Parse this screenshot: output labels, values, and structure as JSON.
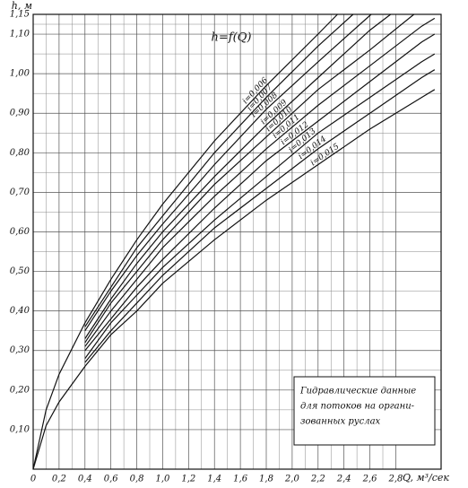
{
  "chart_data": {
    "type": "line",
    "title": "h=f(Q)",
    "y_label": "h, м",
    "x_label": "Q, м³/сек",
    "annotation": [
      "Гидравлические данные",
      "для потоков на органи-",
      "зованных руслах"
    ],
    "xlim": [
      0,
      3.15
    ],
    "ylim": [
      0,
      1.15
    ],
    "grid": true,
    "xticks": [
      0,
      {
        "value": 0.2,
        "label": "0,2"
      },
      {
        "value": 0.4,
        "label": "0,4"
      },
      {
        "value": 0.6,
        "label": "0,6"
      },
      {
        "value": 0.8,
        "label": "0,8"
      },
      {
        "value": 1.0,
        "label": "1,0"
      },
      {
        "value": 1.2,
        "label": "1,2"
      },
      {
        "value": 1.4,
        "label": "1,4"
      },
      {
        "value": 1.6,
        "label": "1,6"
      },
      {
        "value": 1.8,
        "label": "1,8"
      },
      {
        "value": 2.0,
        "label": "2,0"
      },
      {
        "value": 2.2,
        "label": "2,2"
      },
      {
        "value": 2.4,
        "label": "2,4"
      },
      {
        "value": 2.6,
        "label": "2,6"
      },
      {
        "value": 2.8,
        "label": "2,8"
      }
    ],
    "yticks": [
      {
        "value": 0.1,
        "label": "0,10"
      },
      {
        "value": 0.2,
        "label": "0,20"
      },
      {
        "value": 0.3,
        "label": "0,30"
      },
      {
        "value": 0.4,
        "label": "0,40"
      },
      {
        "value": 0.5,
        "label": "0,50"
      },
      {
        "value": 0.6,
        "label": "0,60"
      },
      {
        "value": 0.7,
        "label": "0,70"
      },
      {
        "value": 0.8,
        "label": "0,80"
      },
      {
        "value": 0.9,
        "label": "0,90"
      },
      {
        "value": 1.0,
        "label": "1,00"
      },
      {
        "value": 1.1,
        "label": "1,10"
      },
      {
        "value": 1.15,
        "label": "1,15"
      }
    ],
    "series": [
      {
        "name": "i=0,006",
        "color": "#111",
        "x": [
          0,
          0.1,
          0.2,
          0.4,
          0.6,
          0.8,
          1.0,
          1.4,
          1.8,
          2.2,
          2.35
        ],
        "values": [
          0,
          0.15,
          0.24,
          0.37,
          0.48,
          0.58,
          0.67,
          0.83,
          0.97,
          1.1,
          1.15
        ]
      },
      {
        "name": "i=0,007",
        "color": "#111",
        "x": [
          0.4,
          0.6,
          0.8,
          1.0,
          1.4,
          1.8,
          2.2,
          2.47
        ],
        "values": [
          0.36,
          0.46,
          0.56,
          0.64,
          0.8,
          0.94,
          1.07,
          1.15
        ]
      },
      {
        "name": "i=0,008",
        "color": "#111",
        "x": [
          0.4,
          0.6,
          0.8,
          1.0,
          1.4,
          1.8,
          2.2,
          2.61
        ],
        "values": [
          0.35,
          0.45,
          0.54,
          0.62,
          0.77,
          0.91,
          1.03,
          1.15
        ]
      },
      {
        "name": "i=0,009",
        "color": "#111",
        "x": [
          0.4,
          0.6,
          0.8,
          1.0,
          1.4,
          1.8,
          2.2,
          2.6,
          2.76
        ],
        "values": [
          0.33,
          0.43,
          0.52,
          0.6,
          0.74,
          0.87,
          0.99,
          1.11,
          1.15
        ]
      },
      {
        "name": "i=0,010",
        "color": "#111",
        "x": [
          0.4,
          0.6,
          0.8,
          1.0,
          1.4,
          1.8,
          2.2,
          2.6,
          2.94
        ],
        "values": [
          0.32,
          0.42,
          0.5,
          0.58,
          0.72,
          0.84,
          0.96,
          1.06,
          1.15
        ]
      },
      {
        "name": "i=0,011",
        "color": "#111",
        "x": [
          0.4,
          0.6,
          0.8,
          1.0,
          1.4,
          1.8,
          2.2,
          2.6,
          3.0,
          3.1
        ],
        "values": [
          0.31,
          0.4,
          0.48,
          0.56,
          0.69,
          0.81,
          0.92,
          1.02,
          1.12,
          1.14
        ]
      },
      {
        "name": "i=0,012",
        "color": "#111",
        "x": [
          0.4,
          0.6,
          0.8,
          1.0,
          1.4,
          1.8,
          2.2,
          2.6,
          3.0,
          3.1
        ],
        "values": [
          0.3,
          0.38,
          0.46,
          0.53,
          0.66,
          0.78,
          0.88,
          0.98,
          1.08,
          1.1
        ]
      },
      {
        "name": "i=0,013",
        "color": "#111",
        "x": [
          0.4,
          0.6,
          0.8,
          1.0,
          1.4,
          1.8,
          2.2,
          2.6,
          3.0,
          3.1
        ],
        "values": [
          0.28,
          0.37,
          0.44,
          0.51,
          0.63,
          0.74,
          0.85,
          0.94,
          1.03,
          1.05
        ]
      },
      {
        "name": "i=0,014",
        "color": "#111",
        "x": [
          0.4,
          0.6,
          0.8,
          1.0,
          1.4,
          1.8,
          2.2,
          2.6,
          3.0,
          3.1
        ],
        "values": [
          0.27,
          0.35,
          0.42,
          0.49,
          0.61,
          0.71,
          0.81,
          0.9,
          0.99,
          1.01
        ]
      },
      {
        "name": "i=0,015",
        "color": "#111",
        "x": [
          0,
          0.1,
          0.2,
          0.4,
          0.6,
          0.8,
          1.0,
          1.4,
          1.8,
          2.2,
          2.6,
          3.0,
          3.1
        ],
        "values": [
          0,
          0.11,
          0.17,
          0.26,
          0.34,
          0.4,
          0.47,
          0.58,
          0.68,
          0.77,
          0.86,
          0.94,
          0.96
        ]
      }
    ]
  }
}
